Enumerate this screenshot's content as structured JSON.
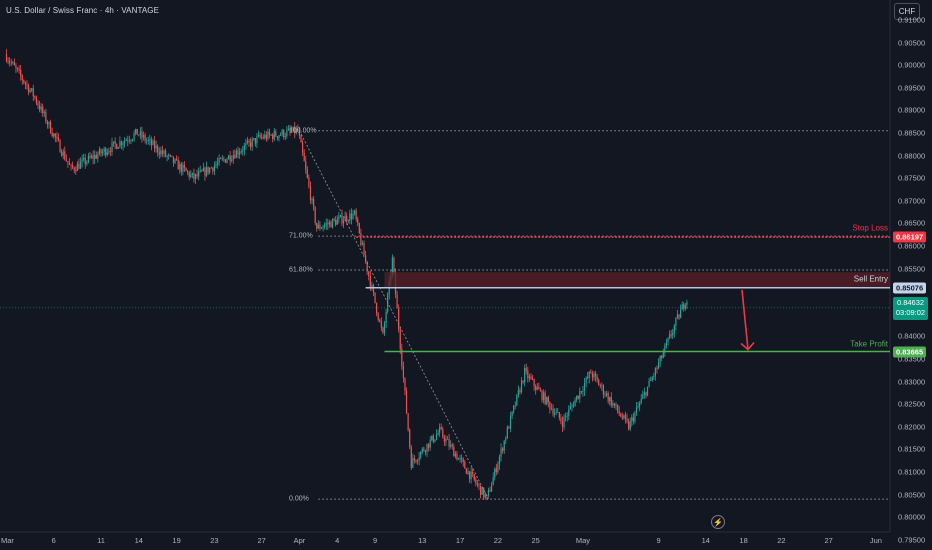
{
  "header": {
    "title": "U.S. Dollar / Swiss Franc · 4h · VANTAGE",
    "currency_button": "CHF"
  },
  "colors": {
    "background": "#131722",
    "up": "#26a69a",
    "down": "#ef5350",
    "stop_loss": "#f23645",
    "take_profit": "#4caf50",
    "sell_entry": "#b2c6e6",
    "current_price": "#089981",
    "dotted_level": "#9598a1"
  },
  "annotations": {
    "stop_loss": {
      "label": "Stop Loss",
      "price_label": "0.86197",
      "price": 0.86197
    },
    "sell_entry": {
      "label": "Sell Entry",
      "price_label": "0.85076",
      "price": 0.85076
    },
    "take_profit": {
      "label": "Take Profit",
      "price_label": "0.83665",
      "price": 0.83665
    },
    "current_price": {
      "price_label": "0.84632",
      "countdown": "03:09:02",
      "price": 0.84632
    }
  },
  "fib_levels": [
    {
      "label": "100.00%",
      "price": 0.8855
    },
    {
      "label": "71.00%",
      "price": 0.8622
    },
    {
      "label": "61.80%",
      "price": 0.8547
    },
    {
      "label": "0.00%",
      "price": 0.804
    }
  ],
  "chart_data": {
    "type": "candlestick",
    "title": "U.S. Dollar / Swiss Franc · 4h · VANTAGE",
    "symbol": "USDCHF",
    "ylim": [
      0.7945,
      0.914
    ],
    "y_ticks": [
      "0.91000",
      "0.90500",
      "0.90000",
      "0.89500",
      "0.89000",
      "0.88500",
      "0.88000",
      "0.87500",
      "0.87000",
      "0.86500",
      "0.86000",
      "0.85500",
      "0.85000",
      "0.84500",
      "0.84000",
      "0.83500",
      "0.83000",
      "0.82500",
      "0.82000",
      "0.81500",
      "0.81000",
      "0.80500",
      "0.80000",
      "0.79500"
    ],
    "x_ticks": [
      "Mar",
      "6",
      "11",
      "14",
      "19",
      "23",
      "27",
      "Apr",
      "4",
      "9",
      "13",
      "17",
      "22",
      "25",
      "May",
      "9",
      "14",
      "18",
      "22",
      "27",
      "Jun"
    ],
    "grid": false,
    "key_points": [
      {
        "date": "Mar 1",
        "price": 0.9025
      },
      {
        "date": "Mar 4",
        "price": 0.8935
      },
      {
        "date": "Mar 8",
        "price": 0.877
      },
      {
        "date": "Mar 15",
        "price": 0.885
      },
      {
        "date": "Mar 21",
        "price": 0.875
      },
      {
        "date": "Mar 28",
        "price": 0.884
      },
      {
        "date": "Apr 1",
        "price": 0.8855
      },
      {
        "date": "Apr 3",
        "price": 0.864
      },
      {
        "date": "Apr 7",
        "price": 0.867
      },
      {
        "date": "Apr 10",
        "price": 0.84
      },
      {
        "date": "Apr 11",
        "price": 0.857
      },
      {
        "date": "Apr 13",
        "price": 0.812
      },
      {
        "date": "Apr 16",
        "price": 0.819
      },
      {
        "date": "Apr 21",
        "price": 0.804
      },
      {
        "date": "Apr 25",
        "price": 0.832
      },
      {
        "date": "Apr 29",
        "price": 0.821
      },
      {
        "date": "May 2",
        "price": 0.832
      },
      {
        "date": "May 6",
        "price": 0.82
      },
      {
        "date": "May 9",
        "price": 0.833
      },
      {
        "date": "May 12",
        "price": 0.848
      }
    ]
  }
}
